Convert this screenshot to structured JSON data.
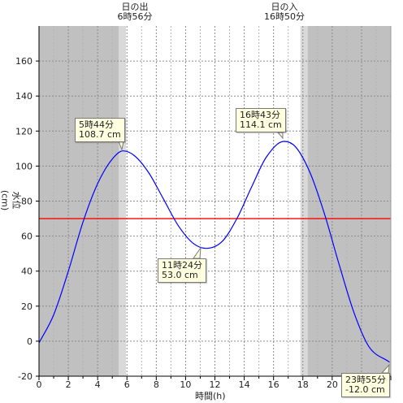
{
  "chart_data": {
    "type": "line",
    "xlabel": "時間(h)",
    "ylabel": "水位(cm)",
    "xlim": [
      0,
      24
    ],
    "ylim": [
      -20,
      180
    ],
    "xticks": [
      0,
      2,
      4,
      6,
      8,
      10,
      12,
      14,
      16,
      18,
      20,
      22
    ],
    "yticks": [
      -20,
      0,
      20,
      40,
      60,
      80,
      100,
      120,
      140,
      160
    ],
    "grid": true,
    "series": [
      {
        "color": "#0000ff",
        "x": [
          0,
          1,
          2,
          3,
          4,
          5,
          5.733,
          6.5,
          7.5,
          8.5,
          9.5,
          10.5,
          11.4,
          12.5,
          13.5,
          14.5,
          15.5,
          16.717,
          17.5,
          18.5,
          19.5,
          20.5,
          21.5,
          22.5,
          23.917
        ],
        "y": [
          -1,
          15,
          40,
          68,
          90,
          104,
          108.7,
          106,
          96,
          81,
          66,
          56,
          53.0,
          57,
          70,
          88,
          105,
          114.1,
          111,
          96,
          72,
          43,
          16,
          -3,
          -12.0
        ]
      }
    ],
    "reference_line": {
      "y": 70,
      "color": "#ff0000"
    },
    "sunrise": {
      "time": "6時56分",
      "label": "日の出"
    },
    "sunset": {
      "time": "16時50分",
      "label": "日の入"
    },
    "night_color": "#c0c0c0",
    "twilight_color": "#d9d9d9",
    "annotations": [
      {
        "time": "5時44分",
        "level": "108.7 cm"
      },
      {
        "time": "11時24分",
        "level": "53.0 cm"
      },
      {
        "time": "16時43分",
        "level": "114.1 cm"
      },
      {
        "time": "23時55分",
        "level": "-12.0 cm"
      }
    ]
  }
}
